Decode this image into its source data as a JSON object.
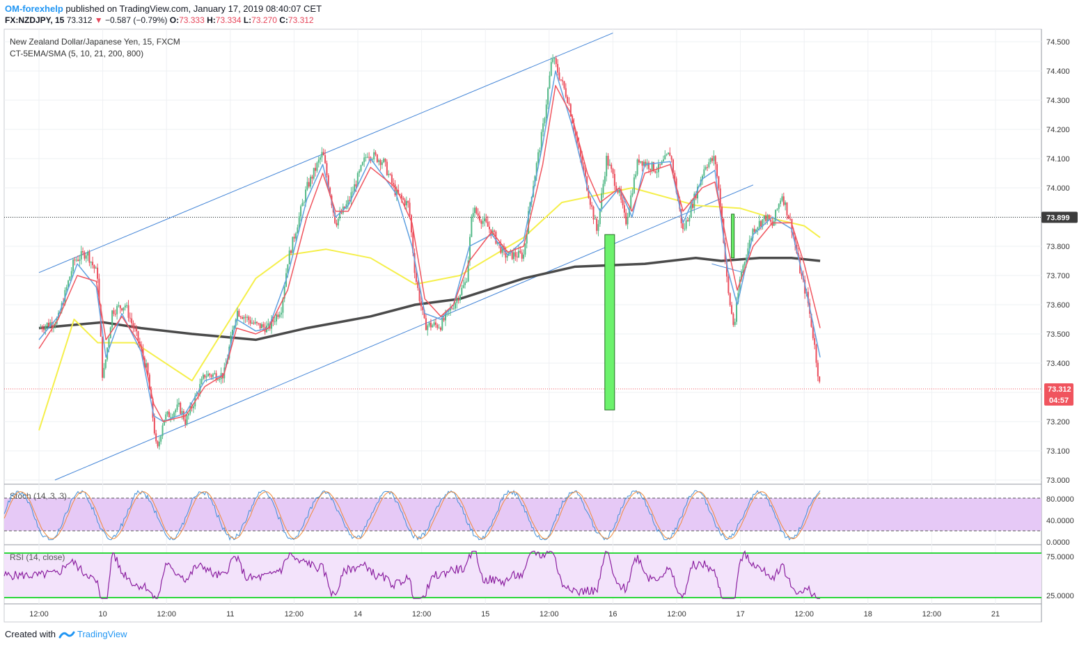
{
  "header": {
    "author": "OM-forexhelp",
    "published": "published on TradingView.com, January 17, 2019 08:40:07 CET",
    "symbol": "FX:NZDJPY, 15",
    "last": "73.312",
    "change": "−0.587 (−0.79%)",
    "o_label": "O:",
    "o_value": "73.333",
    "h_label": "H:",
    "h_value": "73.334",
    "l_label": "L:",
    "l_value": "73.270",
    "c_label": "C:",
    "c_value": "73.312"
  },
  "footer": {
    "created_with": "Created with",
    "brand": "TradingView"
  },
  "colors": {
    "up": "#53b987",
    "down": "#eb4d5c",
    "ema_red": "#f0545e",
    "ema_blue": "#5fa0e0",
    "sma200": "#f5ef4a",
    "sma800": "#4a4a4a",
    "channel": "#3f82d6",
    "stoch_bg": "#e6c9f6",
    "rsi_bg": "#f3e3fb",
    "rsi_line": "#8b1fa0",
    "rsi_band": "#2bd63a",
    "price_label": "#f0545e",
    "ref_label": "#3c3c3c"
  },
  "chart_data": [
    {
      "type": "candlestick",
      "title": "New Zealand Dollar/Japanese Yen, 15, FXCM",
      "indicator": "CT-5EMA/SMA (5, 10, 21, 200, 800)",
      "y_ticks": [
        "74.500",
        "74.400",
        "74.300",
        "74.200",
        "74.100",
        "74.000",
        "73.900",
        "73.800",
        "73.700",
        "73.600",
        "73.500",
        "73.400",
        "73.300",
        "73.200",
        "73.100",
        "73.000"
      ],
      "ylim": [
        73.0,
        74.5
      ],
      "x_ticks": [
        "12:00",
        "10",
        "12:00",
        "11",
        "12:00",
        "14",
        "12:00",
        "15",
        "12:00",
        "16",
        "12:00",
        "17",
        "12:00",
        "18",
        "12:00",
        "21"
      ],
      "ref_line": {
        "label": "73.899",
        "value": 73.899
      },
      "current_price": {
        "label": "73.312",
        "value": 73.312,
        "countdown": "04:57"
      },
      "channel_upper": [
        [
          0,
          73.71
        ],
        [
          9,
          74.53
        ]
      ],
      "channel_lower": [
        [
          0.25,
          73.0
        ],
        [
          11.2,
          74.01
        ]
      ],
      "sma200": [
        [
          0,
          73.17
        ],
        [
          0.55,
          73.55
        ],
        [
          0.92,
          73.47
        ],
        [
          1.5,
          73.47
        ],
        [
          2.4,
          73.34
        ],
        [
          3.4,
          73.69
        ],
        [
          3.9,
          73.77
        ],
        [
          4.5,
          73.79
        ],
        [
          5.2,
          73.76
        ],
        [
          5.9,
          73.67
        ],
        [
          6.6,
          73.7
        ],
        [
          7.6,
          73.83
        ],
        [
          8.2,
          73.95
        ],
        [
          9.3,
          74.0
        ],
        [
          10.3,
          73.94
        ],
        [
          11.0,
          73.93
        ],
        [
          11.6,
          73.89
        ],
        [
          12.0,
          73.87
        ],
        [
          12.25,
          73.83
        ]
      ],
      "sma800": [
        [
          0,
          73.52
        ],
        [
          0.5,
          73.53
        ],
        [
          1.0,
          73.54
        ],
        [
          1.6,
          73.52
        ],
        [
          2.4,
          73.5
        ],
        [
          3.4,
          73.48
        ],
        [
          4.2,
          73.52
        ],
        [
          5.2,
          73.56
        ],
        [
          5.9,
          73.6
        ],
        [
          6.6,
          73.62
        ],
        [
          7.6,
          73.69
        ],
        [
          8.4,
          73.73
        ],
        [
          9.5,
          73.74
        ],
        [
          10.3,
          73.76
        ],
        [
          10.7,
          73.75
        ],
        [
          11.3,
          73.76
        ],
        [
          11.8,
          73.76
        ],
        [
          12.25,
          73.75
        ]
      ],
      "price_path": [
        [
          0,
          73.52
        ],
        [
          0.3,
          73.55
        ],
        [
          0.55,
          73.75
        ],
        [
          0.75,
          73.78
        ],
        [
          0.92,
          73.7
        ],
        [
          1.0,
          73.34
        ],
        [
          1.15,
          73.58
        ],
        [
          1.35,
          73.6
        ],
        [
          1.55,
          73.48
        ],
        [
          1.7,
          73.37
        ],
        [
          1.8,
          73.19
        ],
        [
          1.85,
          73.09
        ],
        [
          1.95,
          73.21
        ],
        [
          2.2,
          73.25
        ],
        [
          2.3,
          73.2
        ],
        [
          2.6,
          73.36
        ],
        [
          2.9,
          73.36
        ],
        [
          3.1,
          73.58
        ],
        [
          3.4,
          73.53
        ],
        [
          3.6,
          73.52
        ],
        [
          3.8,
          73.59
        ],
        [
          3.9,
          73.75
        ],
        [
          4.2,
          74.0
        ],
        [
          4.45,
          74.12
        ],
        [
          4.65,
          73.88
        ],
        [
          4.85,
          73.95
        ],
        [
          5.15,
          74.12
        ],
        [
          5.4,
          74.09
        ],
        [
          5.6,
          73.98
        ],
        [
          5.8,
          73.94
        ],
        [
          5.9,
          73.7
        ],
        [
          6.05,
          73.53
        ],
        [
          6.3,
          73.53
        ],
        [
          6.5,
          73.6
        ],
        [
          6.7,
          73.68
        ],
        [
          6.8,
          73.93
        ],
        [
          7.1,
          73.85
        ],
        [
          7.3,
          73.77
        ],
        [
          7.6,
          73.77
        ],
        [
          7.7,
          73.95
        ],
        [
          7.9,
          74.2
        ],
        [
          8.05,
          74.45
        ],
        [
          8.3,
          74.3
        ],
        [
          8.45,
          74.14
        ],
        [
          8.6,
          74.0
        ],
        [
          8.75,
          73.85
        ],
        [
          8.9,
          74.1
        ],
        [
          9.1,
          73.98
        ],
        [
          9.2,
          73.88
        ],
        [
          9.4,
          74.1
        ],
        [
          9.7,
          74.06
        ],
        [
          9.9,
          74.12
        ],
        [
          10.1,
          73.85
        ],
        [
          10.3,
          73.98
        ],
        [
          10.45,
          74.08
        ],
        [
          10.6,
          74.1
        ],
        [
          10.7,
          73.92
        ],
        [
          10.8,
          73.65
        ],
        [
          10.9,
          73.52
        ],
        [
          11.0,
          73.7
        ],
        [
          11.2,
          73.86
        ],
        [
          11.4,
          73.9
        ],
        [
          11.5,
          73.87
        ],
        [
          11.65,
          73.98
        ],
        [
          11.8,
          73.87
        ],
        [
          11.95,
          73.7
        ],
        [
          12.05,
          73.62
        ],
        [
          12.15,
          73.48
        ],
        [
          12.25,
          73.31
        ]
      ],
      "ema_red": [
        [
          0,
          73.45
        ],
        [
          0.3,
          73.55
        ],
        [
          0.6,
          73.7
        ],
        [
          0.9,
          73.68
        ],
        [
          1.05,
          73.48
        ],
        [
          1.3,
          73.56
        ],
        [
          1.6,
          73.46
        ],
        [
          1.8,
          73.26
        ],
        [
          1.95,
          73.2
        ],
        [
          2.3,
          73.22
        ],
        [
          2.6,
          73.32
        ],
        [
          2.9,
          73.36
        ],
        [
          3.1,
          73.52
        ],
        [
          3.4,
          73.5
        ],
        [
          3.6,
          73.52
        ],
        [
          3.9,
          73.65
        ],
        [
          4.2,
          73.9
        ],
        [
          4.45,
          74.05
        ],
        [
          4.65,
          73.92
        ],
        [
          4.85,
          73.92
        ],
        [
          5.2,
          74.07
        ],
        [
          5.6,
          74.0
        ],
        [
          5.85,
          73.88
        ],
        [
          6.05,
          73.62
        ],
        [
          6.3,
          73.56
        ],
        [
          6.5,
          73.6
        ],
        [
          6.75,
          73.75
        ],
        [
          7.1,
          73.85
        ],
        [
          7.35,
          73.78
        ],
        [
          7.6,
          73.8
        ],
        [
          7.9,
          74.08
        ],
        [
          8.1,
          74.35
        ],
        [
          8.35,
          74.25
        ],
        [
          8.6,
          74.05
        ],
        [
          8.8,
          73.95
        ],
        [
          9.1,
          74.0
        ],
        [
          9.3,
          73.92
        ],
        [
          9.5,
          74.05
        ],
        [
          9.9,
          74.08
        ],
        [
          10.1,
          73.92
        ],
        [
          10.4,
          74.0
        ],
        [
          10.6,
          74.02
        ],
        [
          10.8,
          73.8
        ],
        [
          10.95,
          73.65
        ],
        [
          11.2,
          73.8
        ],
        [
          11.5,
          73.88
        ],
        [
          11.8,
          73.88
        ],
        [
          12.0,
          73.74
        ],
        [
          12.25,
          73.52
        ]
      ],
      "ema_blue": [
        [
          0,
          73.48
        ],
        [
          0.3,
          73.56
        ],
        [
          0.6,
          73.74
        ],
        [
          0.9,
          73.66
        ],
        [
          1.05,
          73.42
        ],
        [
          1.3,
          73.57
        ],
        [
          1.6,
          73.44
        ],
        [
          1.8,
          73.22
        ],
        [
          1.95,
          73.2
        ],
        [
          2.3,
          73.23
        ],
        [
          2.6,
          73.34
        ],
        [
          2.9,
          73.36
        ],
        [
          3.1,
          73.55
        ],
        [
          3.4,
          73.51
        ],
        [
          3.6,
          73.52
        ],
        [
          3.9,
          73.7
        ],
        [
          4.2,
          73.96
        ],
        [
          4.45,
          74.08
        ],
        [
          4.65,
          73.9
        ],
        [
          4.85,
          73.94
        ],
        [
          5.2,
          74.1
        ],
        [
          5.6,
          73.98
        ],
        [
          5.85,
          73.8
        ],
        [
          6.05,
          73.57
        ],
        [
          6.3,
          73.55
        ],
        [
          6.5,
          73.6
        ],
        [
          6.75,
          73.8
        ],
        [
          7.1,
          73.84
        ],
        [
          7.35,
          73.77
        ],
        [
          7.6,
          73.82
        ],
        [
          7.9,
          74.15
        ],
        [
          8.1,
          74.4
        ],
        [
          8.35,
          74.22
        ],
        [
          8.6,
          74.0
        ],
        [
          8.8,
          73.92
        ],
        [
          9.1,
          74.0
        ],
        [
          9.3,
          73.9
        ],
        [
          9.5,
          74.08
        ],
        [
          9.9,
          74.09
        ],
        [
          10.1,
          73.88
        ],
        [
          10.4,
          74.03
        ],
        [
          10.6,
          74.06
        ],
        [
          10.8,
          73.72
        ],
        [
          10.95,
          73.6
        ],
        [
          11.2,
          73.84
        ],
        [
          11.5,
          73.9
        ],
        [
          11.8,
          73.86
        ],
        [
          12.0,
          73.68
        ],
        [
          12.25,
          73.42
        ]
      ],
      "marker_bar": {
        "top": 73.84,
        "bottom": 73.24,
        "x": 8.95
      },
      "marker_bar_small": {
        "top": 73.91,
        "bottom": 73.76,
        "x": 10.88
      },
      "channel_mini": [
        [
          10.55,
          73.74
        ],
        [
          11.05,
          73.71
        ]
      ]
    },
    {
      "type": "line",
      "title": "Stoch (14, 3, 3)",
      "y_ticks": [
        "80.0000",
        "40.0000",
        "0.0000"
      ],
      "ylim": [
        0,
        100
      ],
      "levels": [
        80,
        20
      ]
    },
    {
      "type": "line",
      "title": "RSI (14, close)",
      "y_ticks": [
        "75.0000",
        "25.0000"
      ],
      "ylim": [
        25,
        75
      ],
      "levels": [
        75,
        25
      ]
    }
  ]
}
